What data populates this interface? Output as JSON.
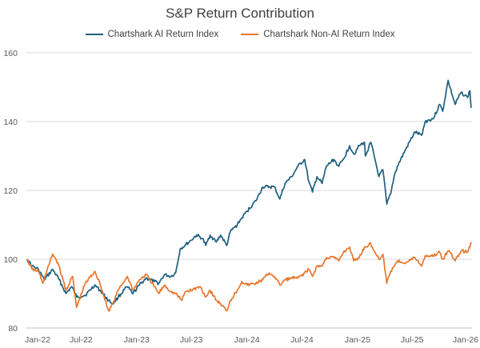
{
  "chart_data": {
    "type": "line",
    "title": "S&P Return Contribution",
    "xlabel": "",
    "ylabel": "",
    "ylim": [
      80,
      160
    ],
    "yticks": [
      80,
      100,
      120,
      140,
      160
    ],
    "xlim": [
      "2022-01-01",
      "2026-01-15"
    ],
    "xticks": [
      {
        "date": "2022-01-01",
        "label": "Jan-22"
      },
      {
        "date": "2022-07-01",
        "label": "Jul-22"
      },
      {
        "date": "2023-01-01",
        "label": "Jan-23"
      },
      {
        "date": "2023-07-01",
        "label": "Jul-23"
      },
      {
        "date": "2024-01-01",
        "label": "Jan-24"
      },
      {
        "date": "2024-07-01",
        "label": "Jul-24"
      },
      {
        "date": "2025-01-01",
        "label": "Jan-25"
      },
      {
        "date": "2025-07-01",
        "label": "Jul-25"
      },
      {
        "date": "2026-01-01",
        "label": "Jan-26"
      }
    ],
    "grid": "horizontal",
    "legend_position": "top",
    "series": [
      {
        "name": "Chartshark AI Return Index",
        "color": "#1f5f7f",
        "points": [
          [
            "2022-01-03",
            100
          ],
          [
            "2022-01-20",
            98
          ],
          [
            "2022-02-10",
            97
          ],
          [
            "2022-03-01",
            94
          ],
          [
            "2022-03-29",
            97
          ],
          [
            "2022-04-20",
            94
          ],
          [
            "2022-05-12",
            90
          ],
          [
            "2022-05-31",
            92
          ],
          [
            "2022-06-16",
            89
          ],
          [
            "2022-07-15",
            89.5
          ],
          [
            "2022-08-15",
            92.5
          ],
          [
            "2022-09-01",
            91
          ],
          [
            "2022-09-30",
            88
          ],
          [
            "2022-10-14",
            87
          ],
          [
            "2022-11-01",
            89
          ],
          [
            "2022-11-30",
            92
          ],
          [
            "2022-12-20",
            90
          ],
          [
            "2023-01-10",
            92.5
          ],
          [
            "2023-02-01",
            94.5
          ],
          [
            "2023-03-01",
            93.5
          ],
          [
            "2023-03-15",
            93
          ],
          [
            "2023-04-03",
            95.5
          ],
          [
            "2023-04-25",
            95
          ],
          [
            "2023-05-10",
            96
          ],
          [
            "2023-05-25",
            103
          ],
          [
            "2023-06-10",
            104
          ],
          [
            "2023-06-30",
            105.5
          ],
          [
            "2023-07-18",
            107
          ],
          [
            "2023-08-07",
            106
          ],
          [
            "2023-08-18",
            104
          ],
          [
            "2023-09-01",
            107
          ],
          [
            "2023-09-22",
            105
          ],
          [
            "2023-10-06",
            107
          ],
          [
            "2023-10-26",
            104
          ],
          [
            "2023-11-07",
            108
          ],
          [
            "2023-11-30",
            110
          ],
          [
            "2023-12-15",
            112
          ],
          [
            "2024-01-02",
            114
          ],
          [
            "2024-01-31",
            117
          ],
          [
            "2024-02-22",
            121
          ],
          [
            "2024-03-15",
            121
          ],
          [
            "2024-04-01",
            121
          ],
          [
            "2024-04-19",
            117.5
          ],
          [
            "2024-05-06",
            122
          ],
          [
            "2024-05-28",
            124
          ],
          [
            "2024-06-18",
            127
          ],
          [
            "2024-07-10",
            129
          ],
          [
            "2024-07-24",
            122.5
          ],
          [
            "2024-08-05",
            119.5
          ],
          [
            "2024-08-20",
            124
          ],
          [
            "2024-09-06",
            122
          ],
          [
            "2024-09-20",
            127
          ],
          [
            "2024-10-15",
            129
          ],
          [
            "2024-10-31",
            127
          ],
          [
            "2024-11-15",
            129
          ],
          [
            "2024-12-06",
            133
          ],
          [
            "2024-12-20",
            130.5
          ],
          [
            "2025-01-07",
            133
          ],
          [
            "2025-01-24",
            134
          ],
          [
            "2025-01-27",
            130
          ],
          [
            "2025-02-14",
            134
          ],
          [
            "2025-02-28",
            129
          ],
          [
            "2025-03-13",
            124
          ],
          [
            "2025-03-26",
            126
          ],
          [
            "2025-04-08",
            116
          ],
          [
            "2025-04-21",
            119
          ],
          [
            "2025-05-02",
            124
          ],
          [
            "2025-05-13",
            127
          ],
          [
            "2025-06-10",
            132
          ],
          [
            "2025-07-10",
            137
          ],
          [
            "2025-08-01",
            136
          ],
          [
            "2025-08-13",
            140
          ],
          [
            "2025-09-10",
            141
          ],
          [
            "2025-09-30",
            145
          ],
          [
            "2025-10-10",
            143
          ],
          [
            "2025-10-28",
            152
          ],
          [
            "2025-11-03",
            150
          ],
          [
            "2025-11-20",
            145
          ],
          [
            "2025-12-10",
            148.5
          ],
          [
            "2025-12-31",
            147
          ],
          [
            "2026-01-08",
            149
          ],
          [
            "2026-01-12",
            144
          ]
        ]
      },
      {
        "name": "Chartshark Non-AI Return Index",
        "color": "#e8762b",
        "points": [
          [
            "2022-01-03",
            100
          ],
          [
            "2022-01-20",
            97
          ],
          [
            "2022-02-10",
            96.5
          ],
          [
            "2022-02-24",
            93
          ],
          [
            "2022-03-29",
            101.5
          ],
          [
            "2022-04-15",
            99
          ],
          [
            "2022-05-12",
            91
          ],
          [
            "2022-06-03",
            95
          ],
          [
            "2022-06-16",
            86
          ],
          [
            "2022-07-15",
            93
          ],
          [
            "2022-08-16",
            96.5
          ],
          [
            "2022-09-01",
            93
          ],
          [
            "2022-09-30",
            85
          ],
          [
            "2022-10-14",
            87
          ],
          [
            "2022-11-01",
            91
          ],
          [
            "2022-12-01",
            95
          ],
          [
            "2022-12-20",
            91
          ],
          [
            "2023-01-10",
            94
          ],
          [
            "2023-02-02",
            95.5
          ],
          [
            "2023-03-01",
            92
          ],
          [
            "2023-03-15",
            90
          ],
          [
            "2023-04-03",
            92.5
          ],
          [
            "2023-04-25",
            90.5
          ],
          [
            "2023-05-10",
            90
          ],
          [
            "2023-05-31",
            88
          ],
          [
            "2023-06-10",
            90.5
          ],
          [
            "2023-06-30",
            91
          ],
          [
            "2023-07-31",
            92
          ],
          [
            "2023-08-18",
            89
          ],
          [
            "2023-09-01",
            91
          ],
          [
            "2023-09-22",
            88
          ],
          [
            "2023-10-06",
            87
          ],
          [
            "2023-10-26",
            85
          ],
          [
            "2023-11-07",
            88
          ],
          [
            "2023-11-30",
            91
          ],
          [
            "2023-12-15",
            93.5
          ],
          [
            "2024-01-02",
            92.5
          ],
          [
            "2024-01-31",
            93
          ],
          [
            "2024-02-22",
            94
          ],
          [
            "2024-03-15",
            96
          ],
          [
            "2024-04-01",
            95
          ],
          [
            "2024-04-19",
            92.5
          ],
          [
            "2024-05-06",
            94
          ],
          [
            "2024-05-28",
            94.5
          ],
          [
            "2024-06-18",
            94.5
          ],
          [
            "2024-07-10",
            96
          ],
          [
            "2024-07-24",
            97
          ],
          [
            "2024-08-05",
            95
          ],
          [
            "2024-08-20",
            98
          ],
          [
            "2024-09-06",
            98
          ],
          [
            "2024-09-20",
            100.5
          ],
          [
            "2024-10-15",
            100.5
          ],
          [
            "2024-10-31",
            99.5
          ],
          [
            "2024-11-15",
            102
          ],
          [
            "2024-12-06",
            103.5
          ],
          [
            "2024-12-20",
            99.5
          ],
          [
            "2025-01-07",
            100.5
          ],
          [
            "2025-01-24",
            103.5
          ],
          [
            "2025-02-14",
            104.5
          ],
          [
            "2025-02-28",
            102
          ],
          [
            "2025-03-13",
            100
          ],
          [
            "2025-03-26",
            101.5
          ],
          [
            "2025-04-08",
            93
          ],
          [
            "2025-04-21",
            96.5
          ],
          [
            "2025-05-02",
            98
          ],
          [
            "2025-05-13",
            99.5
          ],
          [
            "2025-06-10",
            99
          ],
          [
            "2025-07-10",
            100.5
          ],
          [
            "2025-08-01",
            98
          ],
          [
            "2025-08-13",
            101
          ],
          [
            "2025-09-10",
            101
          ],
          [
            "2025-09-30",
            102
          ],
          [
            "2025-10-10",
            100
          ],
          [
            "2025-10-28",
            102.5
          ],
          [
            "2025-11-03",
            102
          ],
          [
            "2025-11-20",
            99.5
          ],
          [
            "2025-12-10",
            102.5
          ],
          [
            "2025-12-31",
            102
          ],
          [
            "2026-01-08",
            103.5
          ],
          [
            "2026-01-12",
            105
          ]
        ]
      }
    ]
  }
}
